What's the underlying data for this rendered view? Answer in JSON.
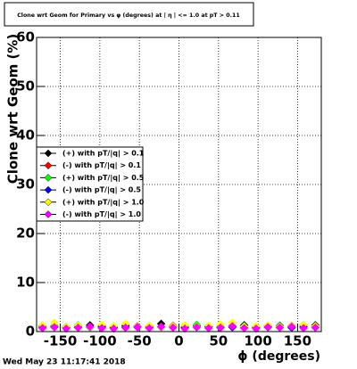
{
  "chart_data": {
    "type": "scatter",
    "title": "Clone wrt Geom for Primary vs φ (degrees) at | η | <= 1.0 at pT > 0.11",
    "x_label": "ϕ (degrees)",
    "y_label": "Clone wrt Geom (%)",
    "timestamp": "Wed May 23 11:17:41 2018",
    "xlim": [
      -180,
      180
    ],
    "ylim": [
      0,
      60
    ],
    "xticks": [
      -150,
      -100,
      -50,
      0,
      50,
      100,
      150
    ],
    "yticks": [
      0,
      10,
      20,
      30,
      40,
      50,
      60
    ],
    "grid": true,
    "legend": "left",
    "x": [
      -172.5,
      -157.5,
      -142.5,
      -127.5,
      -112.5,
      -97.5,
      -82.5,
      -67.5,
      -52.5,
      -37.5,
      -22.5,
      -7.5,
      7.5,
      22.5,
      37.5,
      52.5,
      67.5,
      82.5,
      97.5,
      112.5,
      127.5,
      142.5,
      157.5,
      172.5
    ],
    "series": [
      {
        "name": "(+) with pT/|q| > 0.1",
        "color": "#000000",
        "values": [
          1.2,
          1.0,
          0.9,
          1.1,
          1.3,
          0.8,
          1.0,
          1.2,
          0.9,
          1.1,
          1.6,
          1.0,
          0.9,
          1.2,
          1.0,
          0.8,
          1.1,
          1.3,
          1.0,
          0.9,
          1.2,
          1.1,
          1.0,
          1.3
        ]
      },
      {
        "name": "(-) with pT/|q| > 0.1",
        "color": "#ff0000",
        "values": [
          1.0,
          1.1,
          0.8,
          0.9,
          1.0,
          1.2,
          0.9,
          0.8,
          1.1,
          1.0,
          0.9,
          1.2,
          1.0,
          0.9,
          1.1,
          1.0,
          0.9,
          0.8,
          1.0,
          1.1,
          0.9,
          1.2,
          1.3,
          1.0
        ]
      },
      {
        "name": "(+) with pT/|q| > 0.5",
        "color": "#00ff00",
        "values": [
          0.9,
          1.2,
          1.0,
          1.3,
          0.8,
          1.0,
          1.1,
          0.9,
          1.0,
          1.2,
          0.9,
          1.1,
          1.0,
          1.4,
          0.9,
          1.0,
          1.2,
          1.1,
          0.9,
          1.0,
          1.1,
          0.8,
          1.0,
          1.1
        ]
      },
      {
        "name": "(-) with pT/|q| > 0.5",
        "color": "#0000ff",
        "values": [
          0.8,
          0.9,
          1.0,
          0.8,
          0.9,
          1.0,
          0.8,
          0.9,
          1.0,
          0.8,
          0.9,
          1.0,
          0.8,
          0.9,
          1.0,
          0.8,
          0.9,
          1.0,
          0.8,
          0.9,
          1.0,
          0.8,
          0.9,
          1.0
        ]
      },
      {
        "name": "(+) with pT/|q| > 1.0",
        "color": "#ffff00",
        "values": [
          1.3,
          1.8,
          1.0,
          1.2,
          0.9,
          1.4,
          1.1,
          1.6,
          1.0,
          1.2,
          0.9,
          1.1,
          1.3,
          1.0,
          1.2,
          1.5,
          1.8,
          1.0,
          1.1,
          1.3,
          1.0,
          1.2,
          1.4,
          1.1
        ]
      },
      {
        "name": "(-) with pT/|q| > 1.0",
        "color": "#ff00ff",
        "values": [
          0.7,
          0.9,
          0.6,
          0.8,
          1.0,
          0.7,
          0.6,
          0.8,
          0.9,
          0.7,
          1.0,
          0.8,
          0.6,
          0.9,
          0.7,
          0.8,
          1.1,
          0.7,
          0.6,
          0.9,
          0.8,
          1.0,
          0.7,
          0.8
        ]
      }
    ]
  }
}
